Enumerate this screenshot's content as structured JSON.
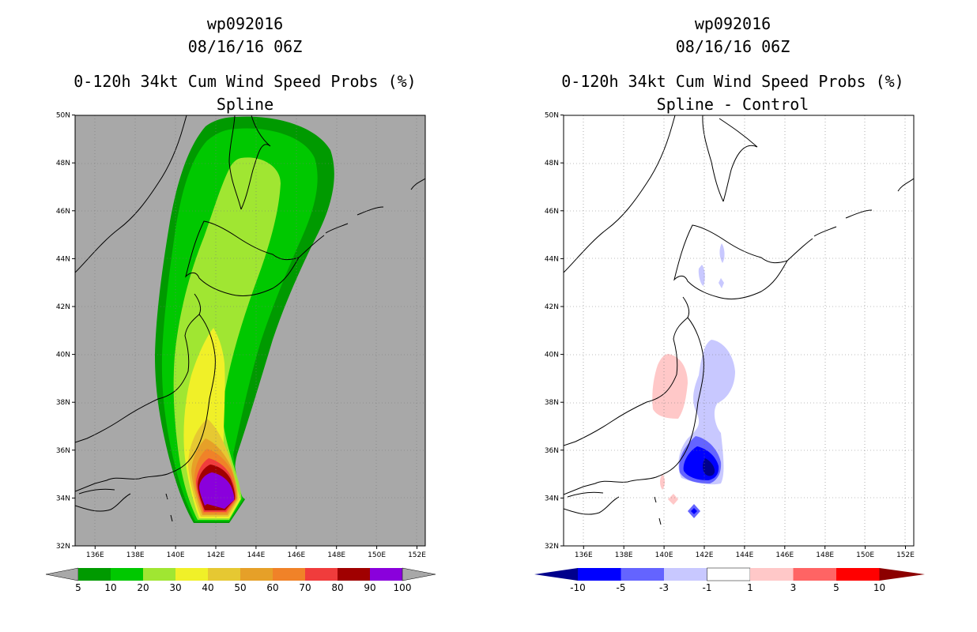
{
  "left_panel": {
    "title_line1": "wp092016",
    "title_line2": "08/16/16 06Z",
    "title_line3": "0-120h 34kt Cum Wind Speed Probs (%)",
    "title_line4": "Spline"
  },
  "right_panel": {
    "title_line1": "wp092016",
    "title_line2": "08/16/16 06Z",
    "title_line3": "0-120h 34kt Cum Wind Speed Probs (%)",
    "title_line4": "Spline - Control"
  },
  "map": {
    "lat_labels": [
      "32N",
      "34N",
      "36N",
      "38N",
      "40N",
      "42N",
      "44N",
      "46N",
      "48N",
      "50N"
    ],
    "lon_labels": [
      "136E",
      "138E",
      "140E",
      "142E",
      "144E",
      "146E",
      "148E",
      "150E",
      "152E"
    ],
    "background_color": "#a8a8a8"
  },
  "left_colorbar": {
    "labels": [
      "5",
      "10",
      "20",
      "30",
      "40",
      "50",
      "60",
      "70",
      "80",
      "90",
      "100"
    ],
    "colors": [
      "#009a00",
      "#00c800",
      "#a0e632",
      "#f0f028",
      "#e6c832",
      "#e6a028",
      "#f08228",
      "#f03c3c",
      "#a00000",
      "#8a00dc"
    ],
    "end_color": "#a8a8a8"
  },
  "right_colorbar": {
    "labels": [
      "-10",
      "-5",
      "-3",
      "-1",
      "1",
      "3",
      "5",
      "10"
    ],
    "colors": [
      "#0000ff",
      "#6464ff",
      "#c8c8ff",
      "#ffffff",
      "#ffc8c8",
      "#ff6464",
      "#ff0000"
    ],
    "low_color": "#00008c",
    "high_color": "#8c0000"
  }
}
